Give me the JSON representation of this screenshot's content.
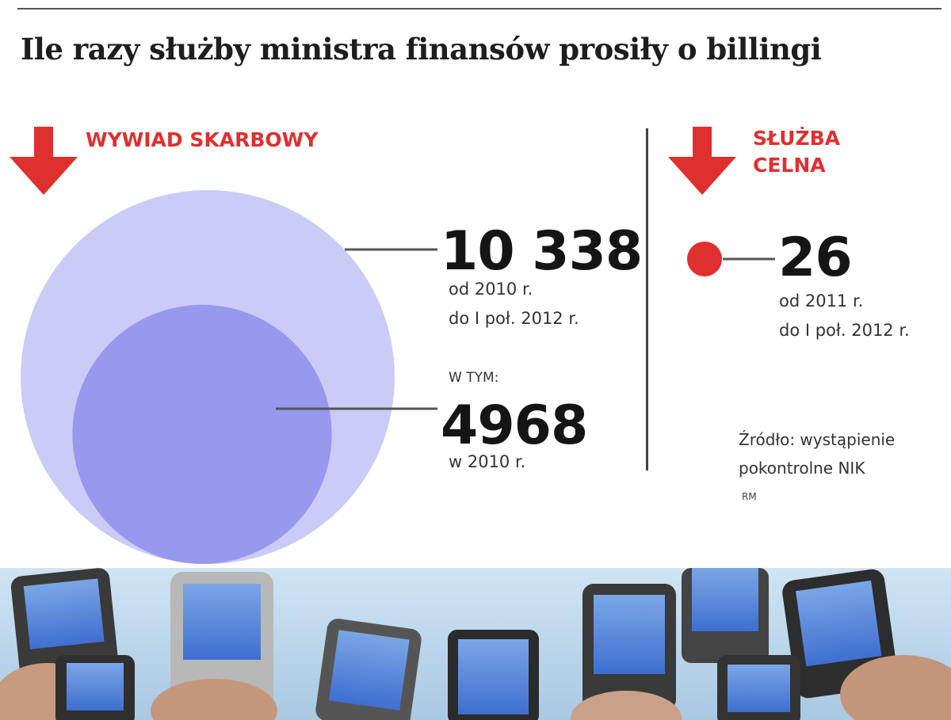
{
  "title": "Ile razy służby ministra finansów prosiły o billingi",
  "colors": {
    "accent": "#e02f2f",
    "outer_circle": "#cbcbf7",
    "inner_circle": "#9898ee",
    "text": "#1e1e1e"
  },
  "sections": {
    "wywiad": {
      "label": "WYWIAD SKARBOWY",
      "icon": "arrow-down-icon",
      "total": {
        "value": "10 338",
        "period_line1": "od 2010 r.",
        "period_line2": "do I poł. 2012 r."
      },
      "subset_intro": "W TYM:",
      "subset": {
        "value": "4968",
        "period": "w 2010 r."
      }
    },
    "celna": {
      "label_line1": "SŁUŻBA",
      "label_line2": "CELNA",
      "icon": "arrow-down-icon",
      "total": {
        "value": "26",
        "period_line1": "od 2011 r.",
        "period_line2": "do I poł. 2012 r."
      }
    }
  },
  "source": {
    "line1": "Źródło: wystąpienie",
    "line2": "pokontrolne NIK"
  },
  "author": "RM",
  "chart_data": {
    "type": "bubble",
    "title": "Ile razy służby ministra finansów prosiły o billingi",
    "area_proportional": true,
    "series": [
      {
        "name": "WYWIAD SKARBOWY",
        "label": "10 338",
        "value": 10338,
        "period": "od 2010 r. do I poł. 2012 r.",
        "color": "#cbcbf7"
      },
      {
        "name": "WYWIAD SKARBOWY",
        "label": "4968",
        "value": 4968,
        "period": "w 2010 r.",
        "nested_in": "10 338",
        "color": "#9898ee"
      },
      {
        "name": "SŁUŻBA CELNA",
        "label": "26",
        "value": 26,
        "period": "od 2011 r. do I poł. 2012 r.",
        "color": "#e02f2f"
      }
    ]
  }
}
